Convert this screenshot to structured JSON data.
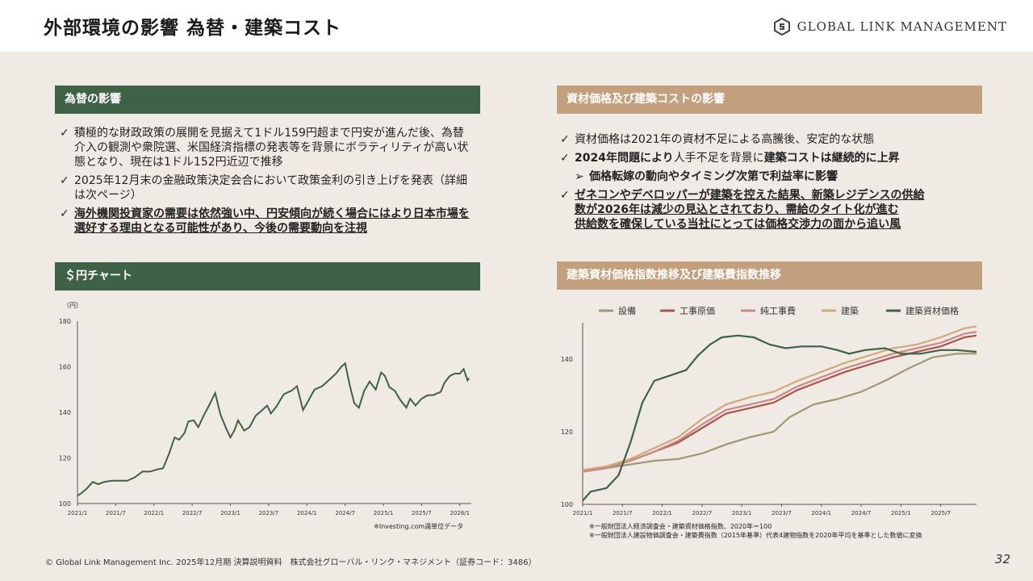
{
  "header": {
    "title": "外部環境の影響 為替・建築コスト",
    "logo_text": "GLOBAL LINK MANAGEMENT",
    "logo_icon": "gs-logo-icon"
  },
  "left": {
    "fx_header": "為替の影響",
    "fx_bullets": [
      "積極的な財政政策の展開を見据えて1ドル159円超まで円安が進んだ後、為替介入の観測や衆院選、米国経済指標の発表等を背景にボラティリティが高い状態となり、現在は1ドル152円近辺で推移",
      "2025年12月末の金融政策決定会合において政策金利の引き上げを発表（詳細は次ページ）",
      "海外機関投資家の需要は依然強い中、円安傾向が続く場合にはより日本市場を選好する理由となる可能性があり、今後の需要動向を注視"
    ],
    "chart_header": "＄円チャート",
    "chart_note": "※Investing.com週単位データ"
  },
  "right": {
    "cost_header": "資材価格及び建築コストの影響",
    "b1": "資材価格は2021年の資材不足による高騰後、安定的な状態",
    "b2_a": "2024年問題により",
    "b2_b": "人手不足を背景に",
    "b2_c": "建築コストは継続的に上昇",
    "sub": "価格転嫁の動向やタイミング次第で利益率に影響",
    "b3_l1": "ゼネコンやデベロッパーが建築を控えた結果、新築レジデンスの供給",
    "b3_l2": "数が2026年は減少の見込とされており、需給のタイト化が進む",
    "b3_l3": "供給数を確保している当社にとっては価格交渉力の面から追い風",
    "chart_header": "建築資材価格指数推移及び建築費指数推移",
    "note1": "※一般財団法人経済調査会・建築資材価格指数、2020年＝100",
    "note2": "※一般財団法人建設物価調査会・建築費指数（2015年基準）代表4建物指数を2020年平均を基準とした数値に変換"
  },
  "footer": {
    "copyright": "© Global Link Management Inc. 2025年12月期 決算説明資料　株式会社グローバル・リンク・マネジメント（証券コード：3486）",
    "page": "32"
  },
  "chart_data": [
    {
      "type": "line",
      "title": "＄円チャート",
      "ylabel": "（円）",
      "ylim": [
        100,
        180
      ],
      "yticks": [
        100,
        120,
        140,
        160,
        180
      ],
      "xticks": [
        "2021/1",
        "2021/7",
        "2022/1",
        "2022/7",
        "2023/1",
        "2023/7",
        "2024/1",
        "2024/7",
        "2025/1",
        "2025/7",
        "2026/1"
      ],
      "x_range": [
        2021.0,
        2026.15
      ],
      "color": "#3f6146",
      "points": [
        [
          2021.0,
          103.5
        ],
        [
          2021.05,
          104.5
        ],
        [
          2021.12,
          106.5
        ],
        [
          2021.2,
          109.5
        ],
        [
          2021.27,
          108.5
        ],
        [
          2021.35,
          109.5
        ],
        [
          2021.45,
          110.0
        ],
        [
          2021.55,
          110.0
        ],
        [
          2021.65,
          110.0
        ],
        [
          2021.75,
          111.5
        ],
        [
          2021.85,
          114.0
        ],
        [
          2021.95,
          114.0
        ],
        [
          2022.05,
          115.0
        ],
        [
          2022.12,
          115.5
        ],
        [
          2022.2,
          122.0
        ],
        [
          2022.27,
          129.0
        ],
        [
          2022.33,
          128.0
        ],
        [
          2022.4,
          131.0
        ],
        [
          2022.45,
          136.0
        ],
        [
          2022.52,
          136.5
        ],
        [
          2022.58,
          133.5
        ],
        [
          2022.65,
          138.5
        ],
        [
          2022.72,
          143.0
        ],
        [
          2022.8,
          148.5
        ],
        [
          2022.87,
          139.0
        ],
        [
          2022.95,
          132.5
        ],
        [
          2023.0,
          129.0
        ],
        [
          2023.05,
          132.0
        ],
        [
          2023.1,
          136.5
        ],
        [
          2023.18,
          132.0
        ],
        [
          2023.25,
          133.5
        ],
        [
          2023.33,
          138.5
        ],
        [
          2023.4,
          140.5
        ],
        [
          2023.48,
          143.0
        ],
        [
          2023.53,
          139.5
        ],
        [
          2023.6,
          142.5
        ],
        [
          2023.7,
          148.0
        ],
        [
          2023.8,
          149.5
        ],
        [
          2023.87,
          151.5
        ],
        [
          2023.95,
          141.0
        ],
        [
          2024.0,
          144.0
        ],
        [
          2024.1,
          150.0
        ],
        [
          2024.2,
          151.5
        ],
        [
          2024.3,
          154.5
        ],
        [
          2024.38,
          157.0
        ],
        [
          2024.45,
          160.0
        ],
        [
          2024.5,
          161.5
        ],
        [
          2024.56,
          152.0
        ],
        [
          2024.62,
          144.0
        ],
        [
          2024.68,
          142.0
        ],
        [
          2024.75,
          149.5
        ],
        [
          2024.82,
          153.5
        ],
        [
          2024.9,
          150.0
        ],
        [
          2024.97,
          157.5
        ],
        [
          2025.02,
          156.0
        ],
        [
          2025.08,
          151.0
        ],
        [
          2025.15,
          149.5
        ],
        [
          2025.22,
          145.5
        ],
        [
          2025.3,
          142.0
        ],
        [
          2025.35,
          146.0
        ],
        [
          2025.42,
          143.0
        ],
        [
          2025.5,
          146.0
        ],
        [
          2025.58,
          147.5
        ],
        [
          2025.65,
          147.5
        ],
        [
          2025.75,
          149.0
        ],
        [
          2025.8,
          153.0
        ],
        [
          2025.87,
          156.0
        ],
        [
          2025.93,
          157.0
        ],
        [
          2026.0,
          157.0
        ],
        [
          2026.05,
          159.0
        ],
        [
          2026.1,
          154.0
        ],
        [
          2026.12,
          155.0
        ]
      ]
    },
    {
      "type": "line",
      "title": "建築資材価格指数推移及び建築費指数推移",
      "legend_position": "top",
      "ylim": [
        100,
        150
      ],
      "yticks": [
        100,
        120,
        140
      ],
      "xticks": [
        "2021/1",
        "2021/7",
        "2022/1",
        "2022/7",
        "2023/1",
        "2023/7",
        "2024/1",
        "2024/7",
        "2025/1",
        "2025/7"
      ],
      "x_range": [
        2021.0,
        2025.95
      ],
      "series": [
        {
          "name": "設備",
          "color": "#9a9a6e",
          "points": [
            [
              2021.0,
              109
            ],
            [
              2021.3,
              110
            ],
            [
              2021.6,
              111
            ],
            [
              2021.9,
              112
            ],
            [
              2022.2,
              112.5
            ],
            [
              2022.5,
              114
            ],
            [
              2022.8,
              116.5
            ],
            [
              2023.1,
              118.5
            ],
            [
              2023.4,
              120
            ],
            [
              2023.6,
              124
            ],
            [
              2023.9,
              127.5
            ],
            [
              2024.2,
              129
            ],
            [
              2024.5,
              131
            ],
            [
              2024.8,
              134
            ],
            [
              2025.1,
              137.5
            ],
            [
              2025.4,
              140.5
            ],
            [
              2025.7,
              141.5
            ],
            [
              2025.95,
              141.5
            ]
          ]
        },
        {
          "name": "工事原価",
          "color": "#b0524c",
          "points": [
            [
              2021.0,
              109
            ],
            [
              2021.3,
              110
            ],
            [
              2021.6,
              112
            ],
            [
              2021.9,
              114.5
            ],
            [
              2022.2,
              117
            ],
            [
              2022.5,
              121
            ],
            [
              2022.8,
              125
            ],
            [
              2023.1,
              126.5
            ],
            [
              2023.4,
              128
            ],
            [
              2023.7,
              131.5
            ],
            [
              2024.0,
              134
            ],
            [
              2024.3,
              136.5
            ],
            [
              2024.6,
              138.5
            ],
            [
              2024.9,
              140.5
            ],
            [
              2025.2,
              142
            ],
            [
              2025.5,
              143.5
            ],
            [
              2025.8,
              146
            ],
            [
              2025.95,
              146.5
            ]
          ]
        },
        {
          "name": "純工事費",
          "color": "#c88a86",
          "points": [
            [
              2021.0,
              109
            ],
            [
              2021.3,
              110
            ],
            [
              2021.6,
              112
            ],
            [
              2021.9,
              114.5
            ],
            [
              2022.2,
              117.5
            ],
            [
              2022.5,
              122
            ],
            [
              2022.8,
              126
            ],
            [
              2023.1,
              127.5
            ],
            [
              2023.4,
              129
            ],
            [
              2023.7,
              132.5
            ],
            [
              2024.0,
              135
            ],
            [
              2024.3,
              137.5
            ],
            [
              2024.6,
              139.5
            ],
            [
              2024.9,
              141.5
            ],
            [
              2025.2,
              143
            ],
            [
              2025.5,
              144.5
            ],
            [
              2025.8,
              147
            ],
            [
              2025.95,
              147.5
            ]
          ]
        },
        {
          "name": "建築",
          "color": "#d2a878",
          "points": [
            [
              2021.0,
              109.5
            ],
            [
              2021.3,
              110.5
            ],
            [
              2021.6,
              112.5
            ],
            [
              2021.9,
              115.5
            ],
            [
              2022.2,
              118.5
            ],
            [
              2022.5,
              123.5
            ],
            [
              2022.8,
              127.5
            ],
            [
              2023.1,
              129.5
            ],
            [
              2023.4,
              131
            ],
            [
              2023.7,
              134
            ],
            [
              2024.0,
              136.5
            ],
            [
              2024.3,
              139
            ],
            [
              2024.6,
              141
            ],
            [
              2024.9,
              143
            ],
            [
              2025.2,
              144
            ],
            [
              2025.5,
              146
            ],
            [
              2025.8,
              148.5
            ],
            [
              2025.95,
              149
            ]
          ]
        },
        {
          "name": "建築資材価格",
          "color": "#3f6146",
          "points": [
            [
              2021.0,
              101
            ],
            [
              2021.1,
              103.5
            ],
            [
              2021.3,
              104.5
            ],
            [
              2021.45,
              108
            ],
            [
              2021.6,
              117
            ],
            [
              2021.75,
              128
            ],
            [
              2021.9,
              134
            ],
            [
              2022.1,
              135.5
            ],
            [
              2022.3,
              137
            ],
            [
              2022.45,
              141
            ],
            [
              2022.6,
              144
            ],
            [
              2022.75,
              146
            ],
            [
              2022.95,
              146.5
            ],
            [
              2023.15,
              146
            ],
            [
              2023.35,
              144
            ],
            [
              2023.55,
              143
            ],
            [
              2023.75,
              143.5
            ],
            [
              2024.0,
              143.5
            ],
            [
              2024.2,
              142.5
            ],
            [
              2024.35,
              141.5
            ],
            [
              2024.55,
              142.5
            ],
            [
              2024.8,
              143
            ],
            [
              2025.0,
              141.5
            ],
            [
              2025.25,
              141.5
            ],
            [
              2025.5,
              142.5
            ],
            [
              2025.7,
              142.5
            ],
            [
              2025.95,
              142
            ]
          ]
        }
      ]
    }
  ]
}
